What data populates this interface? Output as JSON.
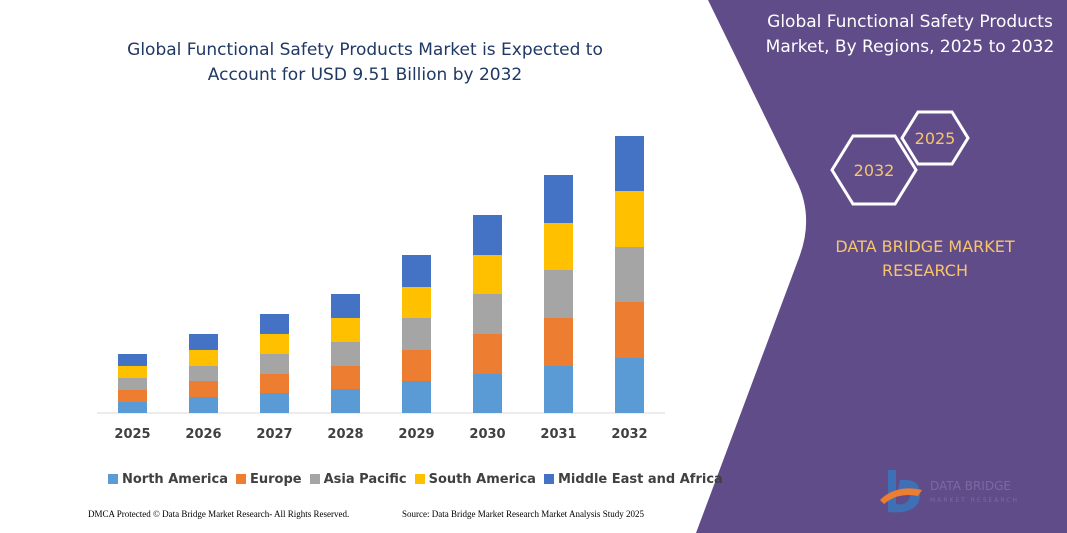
{
  "chart_data": {
    "type": "stacked_bar",
    "title": "Global Functional Safety Products Market is Expected to Account for USD 9.51 Billion by 2032",
    "categories": [
      "2025",
      "2026",
      "2027",
      "2028",
      "2029",
      "2030",
      "2031",
      "2032"
    ],
    "series": [
      {
        "name": "North America",
        "color": "#5b9bd5",
        "values": [
          11,
          16,
          20,
          24,
          32,
          39,
          47,
          55
        ]
      },
      {
        "name": "Europe",
        "color": "#ed7d31",
        "values": [
          12,
          16,
          19,
          23,
          31,
          40,
          48,
          56
        ]
      },
      {
        "name": "Asia Pacific",
        "color": "#a5a5a5",
        "values": [
          12,
          15,
          20,
          24,
          32,
          40,
          48,
          55
        ]
      },
      {
        "name": "South America",
        "color": "#ffc000",
        "values": [
          12,
          16,
          20,
          24,
          31,
          39,
          47,
          56
        ]
      },
      {
        "name": "Middle East and Africa",
        "color": "#4472c4",
        "values": [
          12,
          16,
          20,
          24,
          32,
          40,
          48,
          55
        ]
      }
    ],
    "ylim": [
      0,
      300
    ]
  },
  "panel": {
    "title": "Global Functional Safety Products Market, By Regions, 2025 to 2032",
    "badges": [
      "2032",
      "2025"
    ],
    "brand": "DATA BRIDGE MARKET RESEARCH"
  },
  "logo": {
    "name": "DATA BRIDGE",
    "tagline": "MARKET RESEARCH"
  },
  "footer": {
    "left": "DMCA Protected © Data Bridge Market Research- All Rights Reserved.",
    "right": "Source: Data Bridge Market Research Market Analysis Study 2025"
  }
}
